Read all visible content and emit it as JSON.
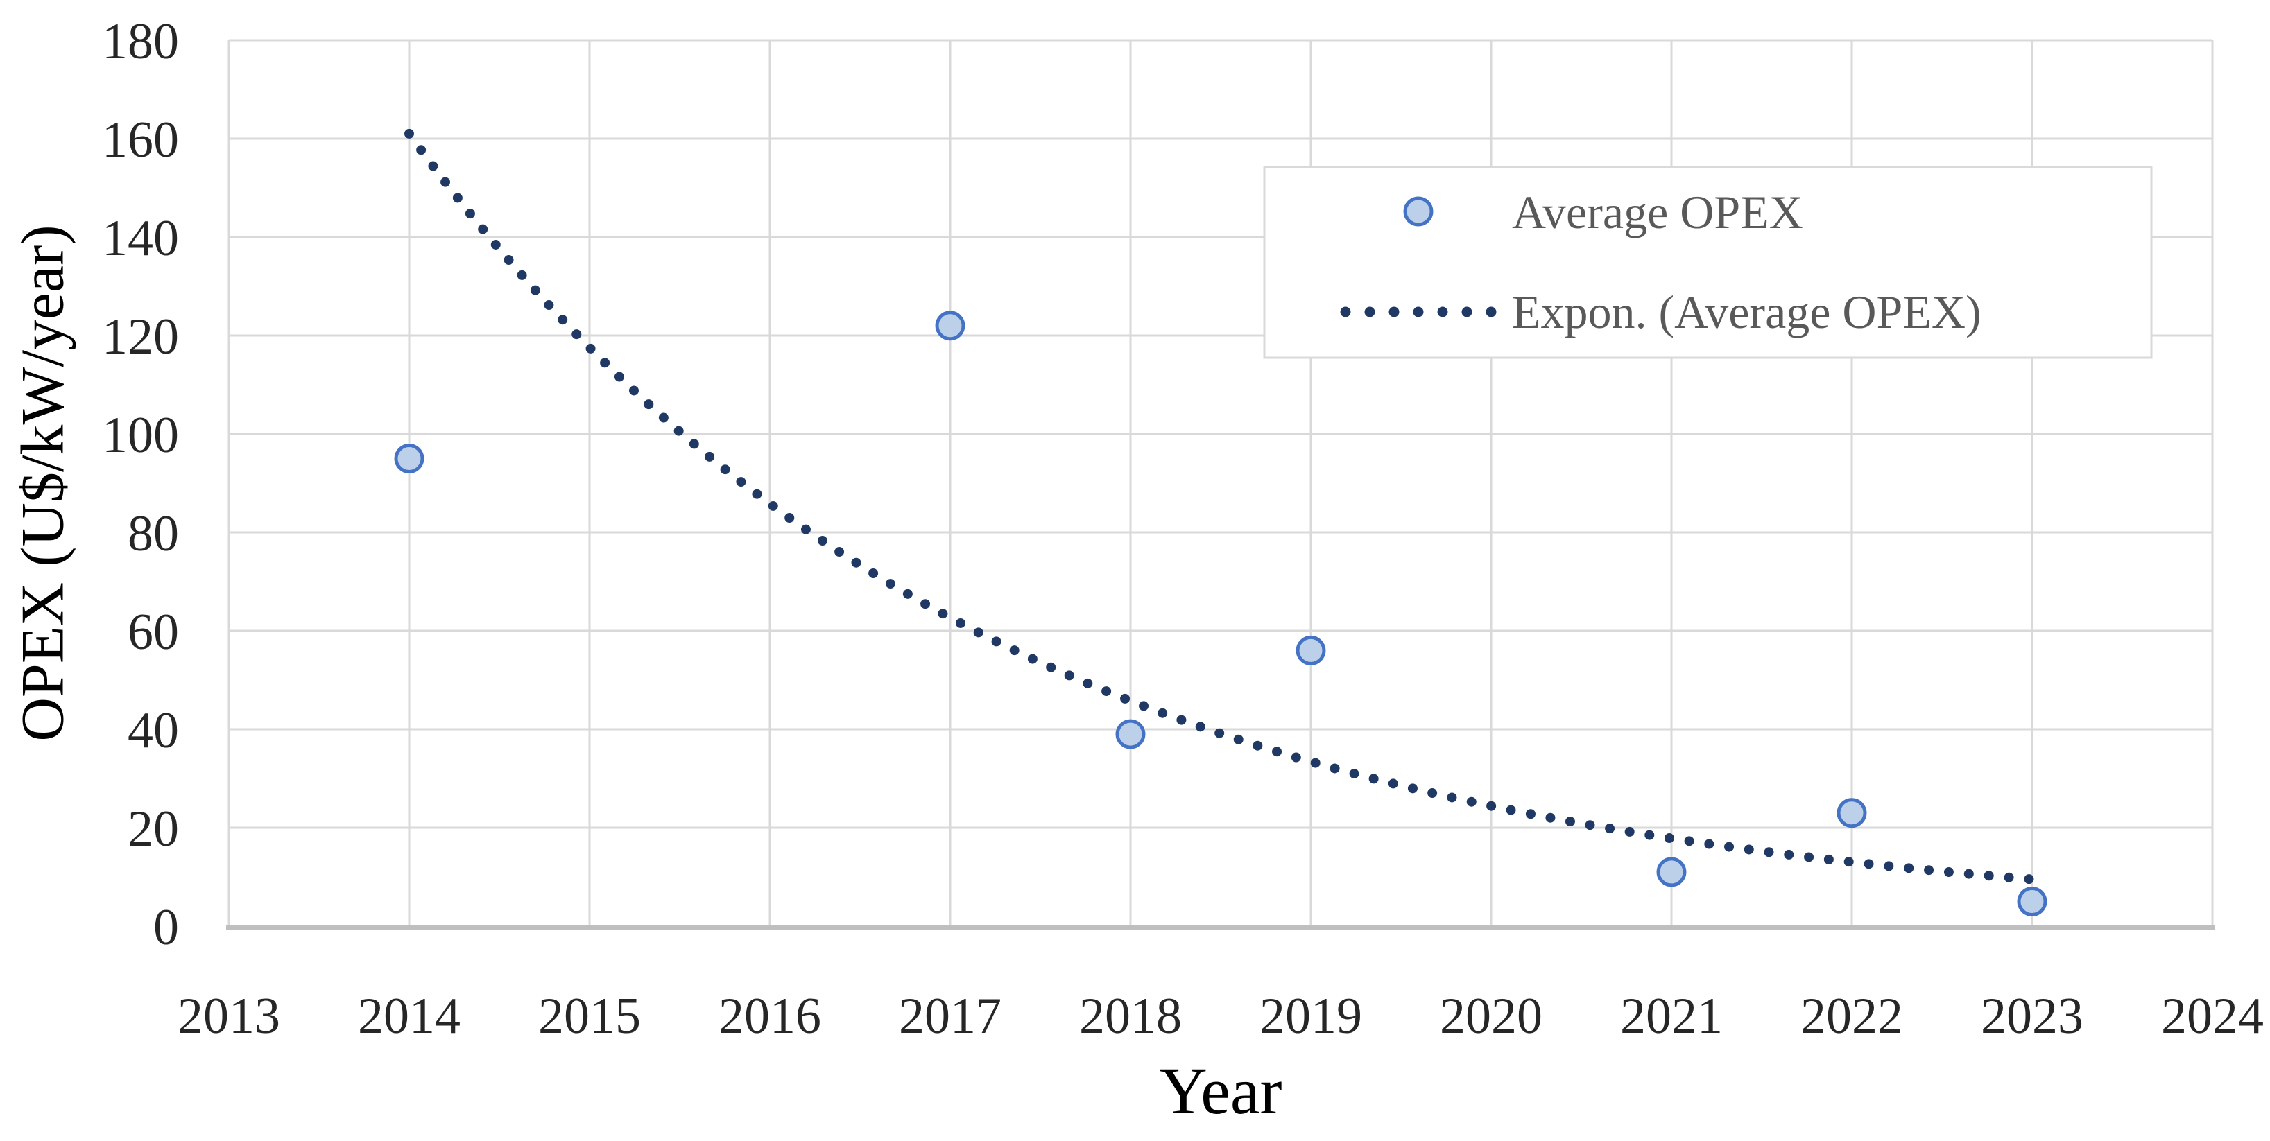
{
  "chart_data": {
    "type": "scatter",
    "title": "",
    "xlabel": "Year",
    "ylabel": "OPEX (U$/kW/year)",
    "xlim": [
      2013,
      2024
    ],
    "ylim": [
      0,
      180
    ],
    "x_ticks": [
      2013,
      2014,
      2015,
      2016,
      2017,
      2018,
      2019,
      2020,
      2021,
      2022,
      2023,
      2024
    ],
    "y_ticks": [
      0,
      20,
      40,
      60,
      80,
      100,
      120,
      140,
      160,
      180
    ],
    "grid": true,
    "legend_position": "upper right",
    "series": [
      {
        "name": "Average OPEX",
        "type": "scatter",
        "marker": "circle",
        "marker_fill": "#BCD0EA",
        "marker_stroke": "#4472C4",
        "points": [
          {
            "x": 2014,
            "y": 95
          },
          {
            "x": 2017,
            "y": 122
          },
          {
            "x": 2018,
            "y": 39
          },
          {
            "x": 2019,
            "y": 56
          },
          {
            "x": 2021,
            "y": 11
          },
          {
            "x": 2022,
            "y": 23
          },
          {
            "x": 2023,
            "y": 5
          }
        ]
      }
    ],
    "trendline": {
      "name": "Expon. (Average OPEX)",
      "type": "exponential",
      "style": "dotted",
      "color": "#203864",
      "x_start": 2014,
      "y_start": 161,
      "x_end": 2023,
      "y_end": 9.5
    },
    "legend": [
      {
        "label": "Average OPEX"
      },
      {
        "label": "Expon. (Average OPEX)"
      }
    ],
    "colors": {
      "gridline": "#D9D9D9",
      "axis_line": "#BFBFBF",
      "tick_text": "#262626",
      "legend_text": "#595959",
      "axis_title_text": "#000000",
      "legend_border": "#D9D9D9",
      "background": "#FFFFFF"
    }
  }
}
